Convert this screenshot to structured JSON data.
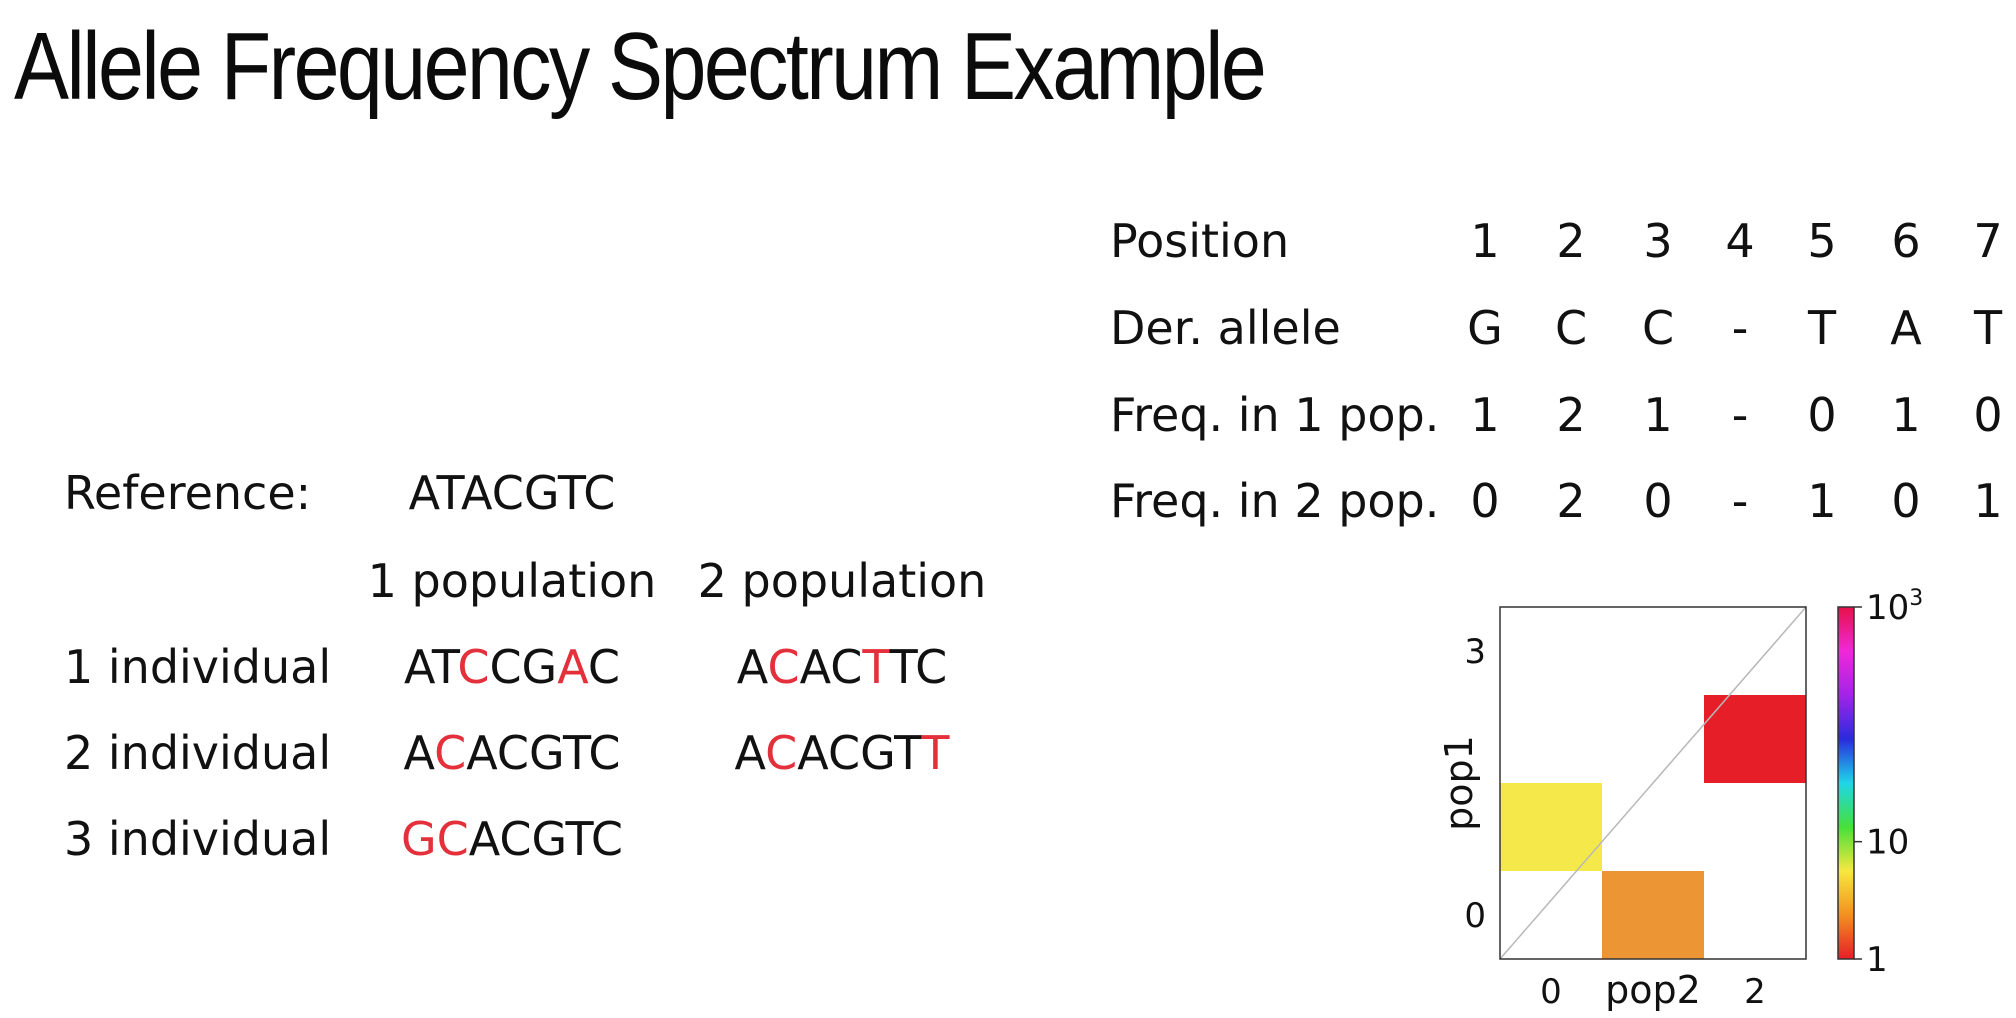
{
  "title": "Allele Frequency Spectrum Example",
  "left_panel": {
    "reference_label": "Reference:",
    "reference_sequence": "ATACGTC",
    "population_headers": [
      "1 population",
      "2 population"
    ],
    "individuals": [
      {
        "label": "1 individual",
        "pop1": [
          {
            "text": "AT",
            "highlight": false
          },
          {
            "text": "C",
            "highlight": true
          },
          {
            "text": "CG",
            "highlight": false
          },
          {
            "text": "A",
            "highlight": true
          },
          {
            "text": "C",
            "highlight": false
          }
        ],
        "pop2": [
          {
            "text": "A",
            "highlight": false
          },
          {
            "text": "C",
            "highlight": true
          },
          {
            "text": "AC",
            "highlight": false
          },
          {
            "text": "T",
            "highlight": true
          },
          {
            "text": "TC",
            "highlight": false
          }
        ]
      },
      {
        "label": "2 individual",
        "pop1": [
          {
            "text": "A",
            "highlight": false
          },
          {
            "text": "C",
            "highlight": true
          },
          {
            "text": "ACGTC",
            "highlight": false
          }
        ],
        "pop2": [
          {
            "text": "A",
            "highlight": false
          },
          {
            "text": "C",
            "highlight": true
          },
          {
            "text": "ACGT",
            "highlight": false
          },
          {
            "text": "T",
            "highlight": true
          }
        ]
      },
      {
        "label": "3 individual",
        "pop1": [
          {
            "text": "GC",
            "highlight": true
          },
          {
            "text": "ACGTC",
            "highlight": false
          }
        ],
        "pop2": []
      }
    ],
    "highlight_color": "#e3303a"
  },
  "table": {
    "rows": [
      {
        "label": "Position",
        "cells": [
          "1",
          "2",
          "3",
          "4",
          "5",
          "6",
          "7"
        ]
      },
      {
        "label": "Der. allele",
        "cells": [
          "G",
          "C",
          "C",
          "-",
          "T",
          "A",
          "T"
        ]
      },
      {
        "label": "Freq. in 1 pop.",
        "cells": [
          "1",
          "2",
          "1",
          "-",
          "0",
          "1",
          "0"
        ]
      },
      {
        "label": "Freq. in 2 pop.",
        "cells": [
          "0",
          "2",
          "0",
          "-",
          "1",
          "0",
          "1"
        ]
      }
    ]
  },
  "chart_data": {
    "type": "heatmap",
    "xlabel": "pop2",
    "ylabel": "pop1",
    "x_ticks": [
      "0",
      "2"
    ],
    "y_ticks": [
      "0",
      "3"
    ],
    "x_range": [
      0,
      3
    ],
    "y_range": [
      0,
      4
    ],
    "cells": [
      {
        "pop2": 0,
        "pop1": 1,
        "count": 2,
        "color": "#f5e84a"
      },
      {
        "pop2": 1,
        "pop1": 0,
        "count": 3,
        "color": "#ec9535"
      },
      {
        "pop2": 2,
        "pop1": 2,
        "count": 1000,
        "color": "#e61e28"
      }
    ],
    "diagonal_line": true,
    "colorbar": {
      "scale": "log",
      "range": [
        1,
        1000
      ],
      "tick_labels": [
        {
          "value": 1,
          "base": "1",
          "exp": ""
        },
        {
          "value": 10,
          "base": "10",
          "exp": ""
        },
        {
          "value": 1000,
          "base": "10",
          "exp": "3"
        }
      ],
      "colormap": [
        "#e61e28",
        "#f29020",
        "#f6e840",
        "#46e03a",
        "#1fd6e8",
        "#2a2bdc",
        "#a324e8",
        "#f028d8",
        "#e8104a"
      ]
    }
  }
}
